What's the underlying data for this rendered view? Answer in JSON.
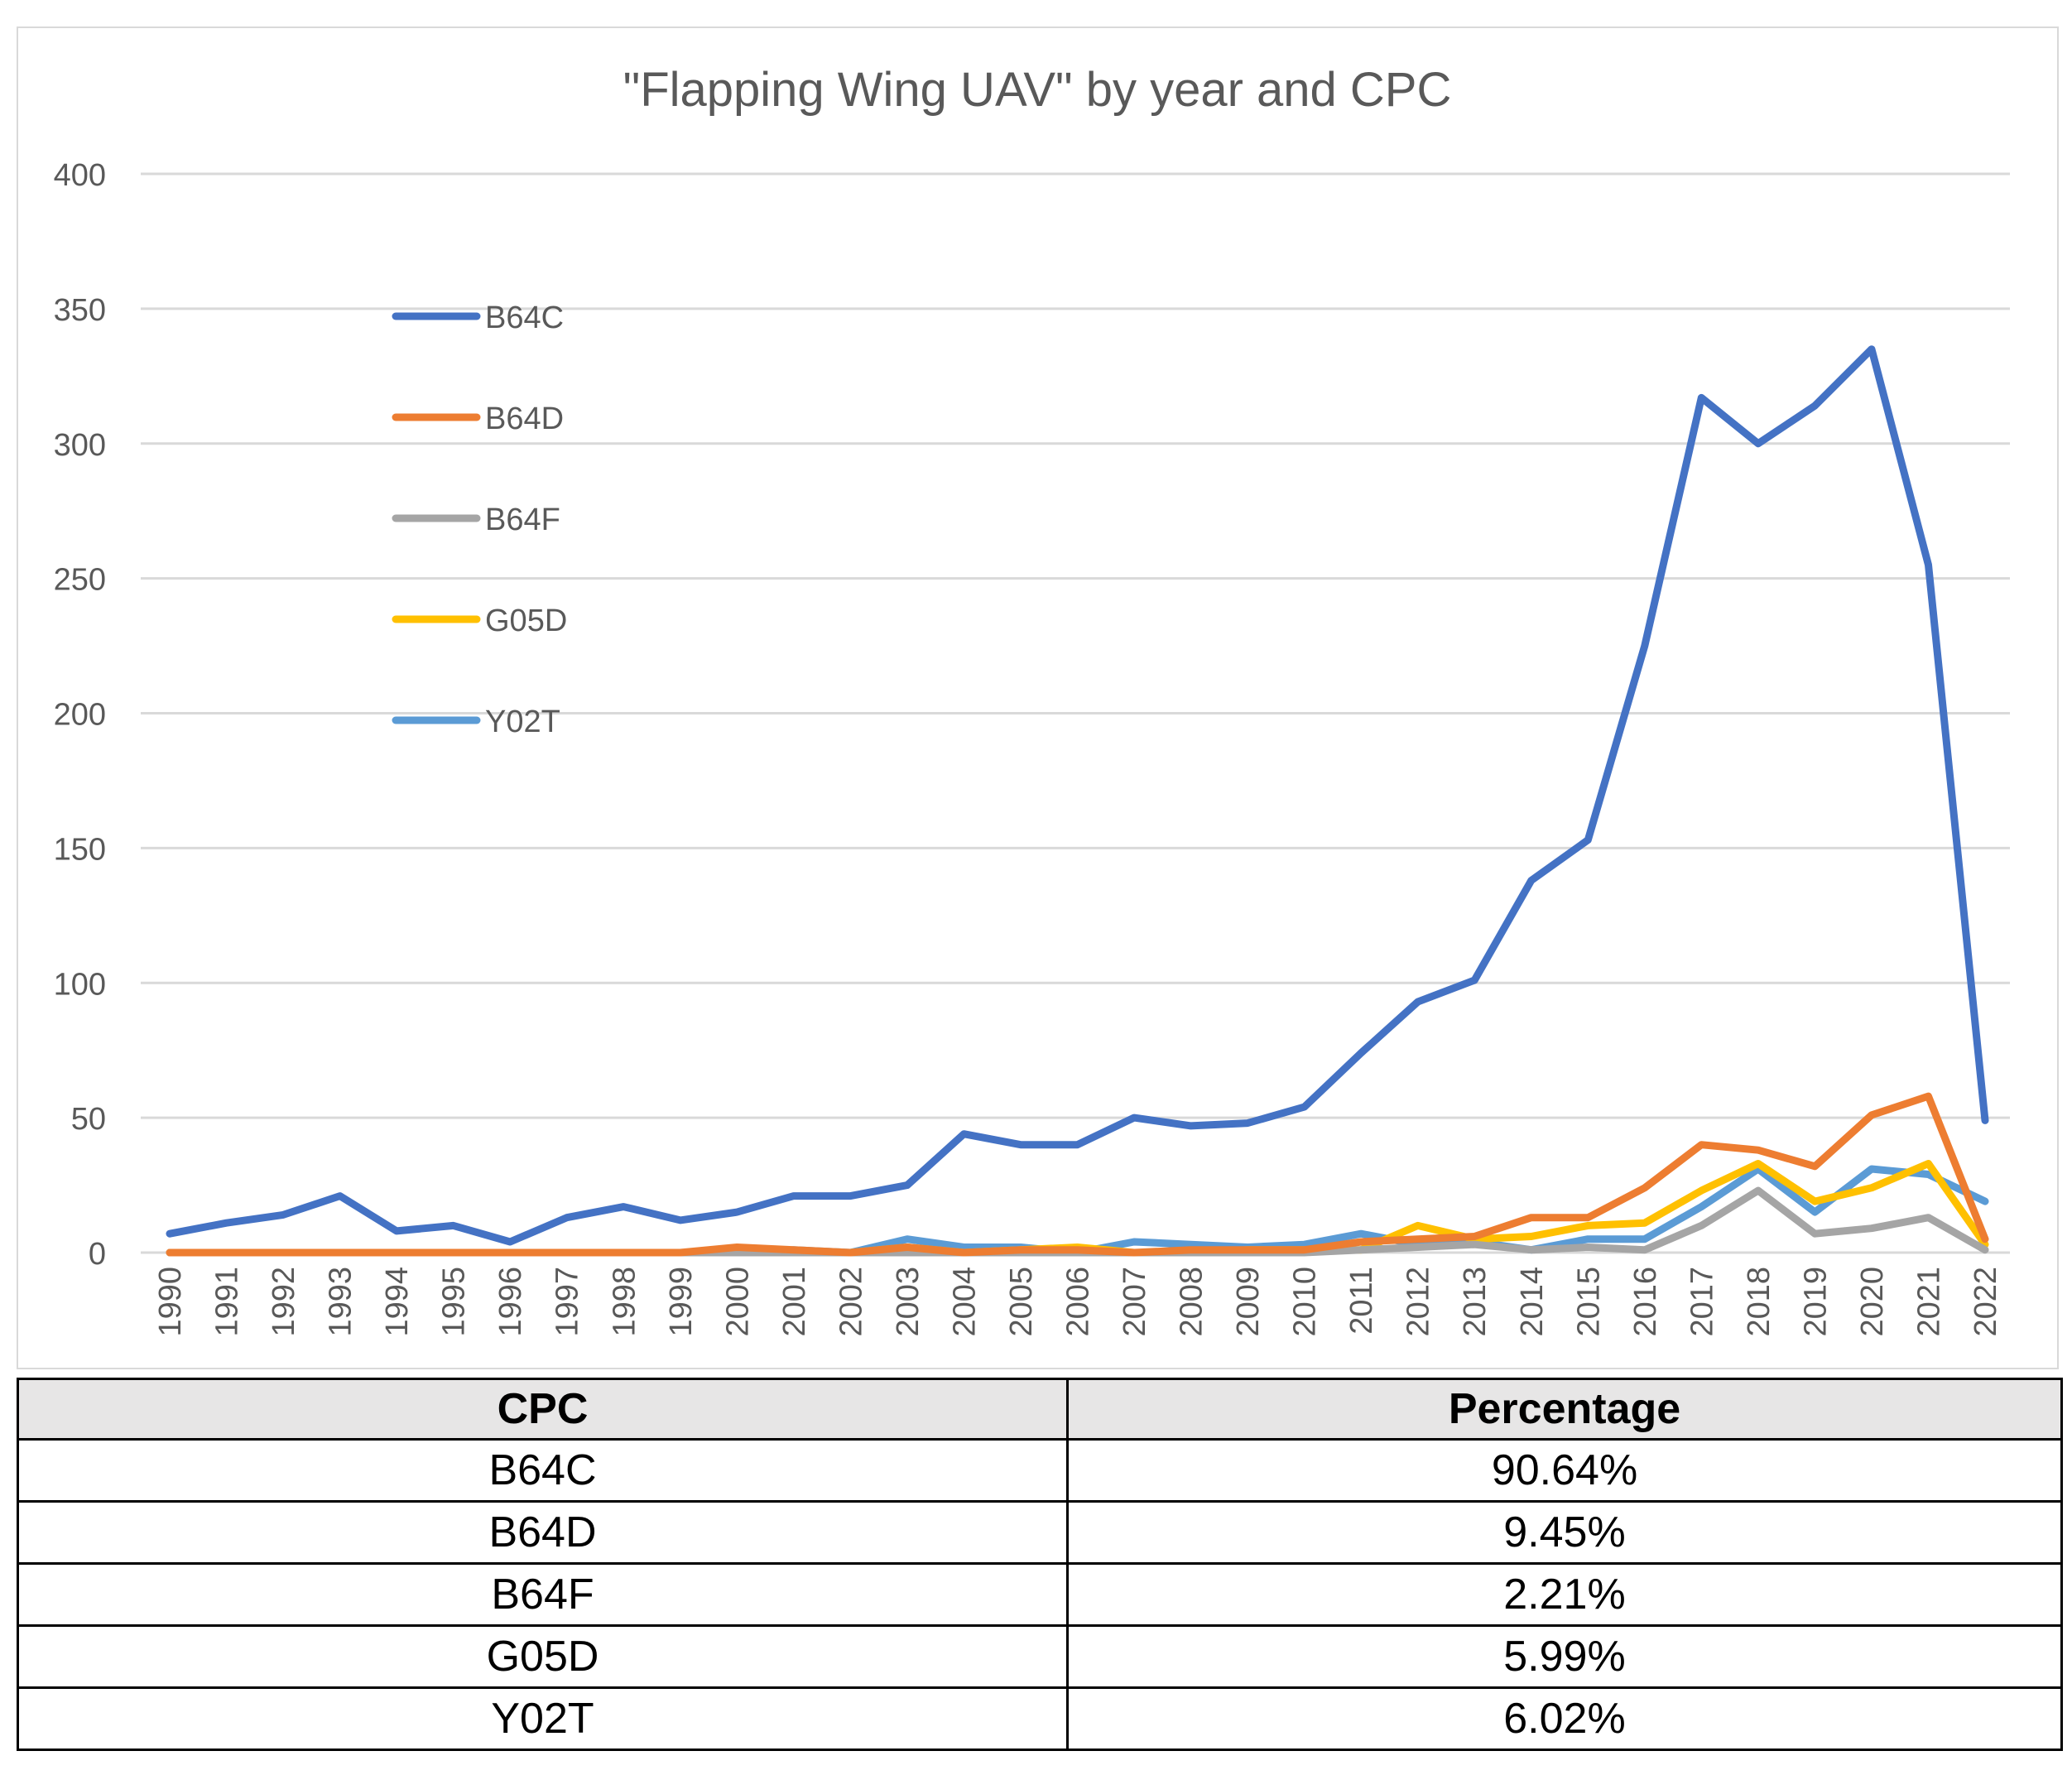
{
  "chart_data": {
    "type": "line",
    "title": "\"Flapping Wing UAV\" by year and CPC",
    "xlabel": "",
    "ylabel": "",
    "ylim": [
      0,
      400
    ],
    "yticks": [
      0,
      50,
      100,
      150,
      200,
      250,
      300,
      350,
      400
    ],
    "grid": true,
    "legend_position": "upper-left",
    "categories": [
      "1990",
      "1991",
      "1992",
      "1993",
      "1994",
      "1995",
      "1996",
      "1997",
      "1998",
      "1999",
      "2000",
      "2001",
      "2002",
      "2003",
      "2004",
      "2005",
      "2006",
      "2007",
      "2008",
      "2009",
      "2010",
      "2011",
      "2012",
      "2013",
      "2014",
      "2015",
      "2016",
      "2017",
      "2018",
      "2019",
      "2020",
      "2021",
      "2022"
    ],
    "series": [
      {
        "name": "B64C",
        "color": "#4472c4",
        "values": [
          7,
          11,
          14,
          21,
          8,
          10,
          4,
          13,
          17,
          12,
          15,
          21,
          21,
          25,
          44,
          40,
          40,
          50,
          47,
          48,
          54,
          74,
          93,
          101,
          138,
          153,
          225,
          317,
          300,
          314,
          335,
          255,
          49
        ]
      },
      {
        "name": "B64D",
        "color": "#ed7d31",
        "values": [
          0,
          0,
          0,
          0,
          0,
          0,
          0,
          0,
          0,
          0,
          2,
          1,
          0,
          2,
          0,
          1,
          1,
          0,
          1,
          1,
          1,
          4,
          5,
          6,
          13,
          13,
          24,
          40,
          38,
          32,
          51,
          58,
          5
        ]
      },
      {
        "name": "B64F",
        "color": "#a5a5a5",
        "values": [
          0,
          0,
          0,
          0,
          0,
          0,
          0,
          0,
          0,
          0,
          0,
          0,
          0,
          0,
          0,
          0,
          0,
          0,
          0,
          0,
          0,
          1,
          2,
          3,
          1,
          2,
          1,
          10,
          23,
          7,
          9,
          13,
          1
        ]
      },
      {
        "name": "G05D",
        "color": "#ffc000",
        "values": [
          0,
          0,
          0,
          0,
          0,
          0,
          0,
          0,
          0,
          0,
          0,
          0,
          0,
          2,
          0,
          1,
          2,
          0,
          0,
          1,
          1,
          1,
          10,
          5,
          6,
          10,
          11,
          23,
          33,
          19,
          24,
          33,
          3
        ]
      },
      {
        "name": "Y02T",
        "color": "#5b9bd5",
        "values": [
          0,
          0,
          0,
          0,
          0,
          0,
          0,
          0,
          0,
          0,
          0,
          1,
          0,
          5,
          2,
          2,
          0,
          4,
          3,
          2,
          3,
          7,
          3,
          4,
          1,
          5,
          5,
          17,
          31,
          15,
          31,
          29,
          19
        ]
      }
    ]
  },
  "table": {
    "headers": [
      "CPC",
      "Percentage"
    ],
    "rows": [
      [
        "B64C",
        "90.64%"
      ],
      [
        "B64D",
        "9.45%"
      ],
      [
        "B64F",
        "2.21%"
      ],
      [
        "G05D",
        "5.99%"
      ],
      [
        "Y02T",
        "6.02%"
      ]
    ]
  }
}
